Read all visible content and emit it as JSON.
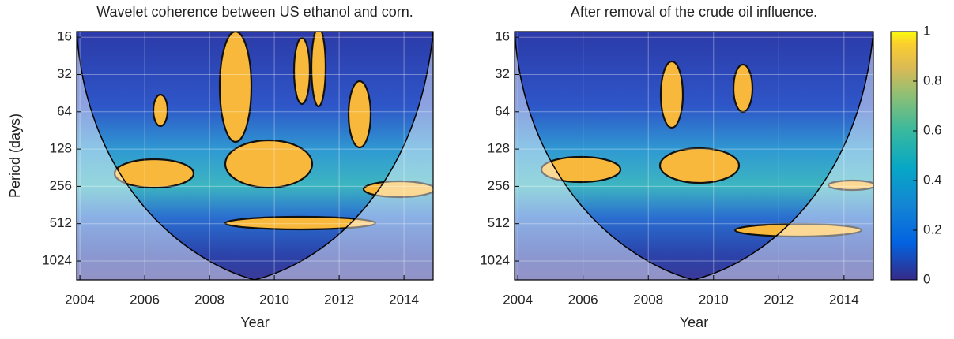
{
  "chart_data": [
    {
      "type": "wavelet",
      "title": "Wavelet coherence between US ethanol and corn.",
      "xlabel": "Year",
      "ylabel": "Period (days)",
      "xlim": [
        2003.9,
        2014.9
      ],
      "xticks": [
        2004,
        2006,
        2008,
        2010,
        2012,
        2014
      ],
      "ylim": [
        14.4,
        1455
      ],
      "yticks": [
        16,
        32,
        64,
        128,
        256,
        512,
        1024
      ],
      "log_y": true,
      "grid": true
    },
    {
      "type": "wavelet",
      "title": "After removal of the crude oil influence.",
      "xlabel": "Year",
      "xlim": [
        2003.9,
        2014.9
      ],
      "xticks": [
        2004,
        2006,
        2008,
        2010,
        2012,
        2014
      ],
      "ylim": [
        14.4,
        1455
      ],
      "yticks": [
        16,
        32,
        64,
        128,
        256,
        512,
        1024
      ],
      "log_y": true,
      "grid": true
    },
    {
      "type": "colorbar",
      "ylim": [
        0,
        1
      ],
      "yticks": [
        0,
        0.2,
        0.4,
        0.6,
        0.8,
        1
      ]
    }
  ]
}
